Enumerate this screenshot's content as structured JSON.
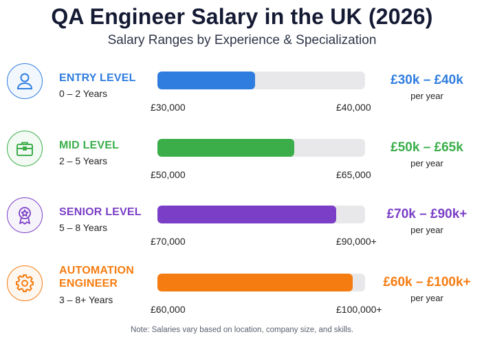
{
  "title": "QA Engineer Salary in the UK (2026)",
  "subtitle": "Salary Ranges by Experience & Specialization",
  "note": "Note: Salaries vary based on location, company size, and skills.",
  "chart_data": {
    "type": "bar",
    "orientation": "horizontal",
    "title": "QA Engineer Salary in the UK (2026)",
    "subtitle": "Salary Ranges by Experience & Specialization",
    "unit": "GBP per year",
    "categories": [
      "ENTRY LEVEL",
      "MID LEVEL",
      "SENIOR LEVEL",
      "AUTOMATION ENGINEER"
    ],
    "rows": [
      {
        "label": "ENTRY LEVEL",
        "years": "0 – 2 Years",
        "min": 30000,
        "max": 40000,
        "min_label": "£30,000",
        "max_label": "£40,000",
        "range_label": "£30k – £40k",
        "per": "per year",
        "fill_fraction": 0.47,
        "color": "#2f7ddf",
        "icon": "user-icon"
      },
      {
        "label": "MID LEVEL",
        "years": "2 – 5 Years",
        "min": 50000,
        "max": 65000,
        "min_label": "£50,000",
        "max_label": "£65,000",
        "range_label": "£50k – £65k",
        "per": "per year",
        "fill_fraction": 0.66,
        "color": "#3bae4a",
        "icon": "briefcase-icon"
      },
      {
        "label": "SENIOR LEVEL",
        "years": "5 – 8 Years",
        "min": 70000,
        "max": 90000,
        "min_label": "£70,000",
        "max_label": "£90,000+",
        "range_label": "£70k – £90k+",
        "per": "per year",
        "fill_fraction": 0.86,
        "color": "#7a3fc6",
        "icon": "award-ribbon-icon"
      },
      {
        "label": "AUTOMATION ENGINEER",
        "years": "3 – 8+ Years",
        "min": 60000,
        "max": 100000,
        "min_label": "£60,000",
        "max_label": "£100,000+",
        "range_label": "£60k – £100k+",
        "per": "per year",
        "fill_fraction": 0.94,
        "color": "#f57c10",
        "icon": "gear-icon"
      }
    ]
  }
}
